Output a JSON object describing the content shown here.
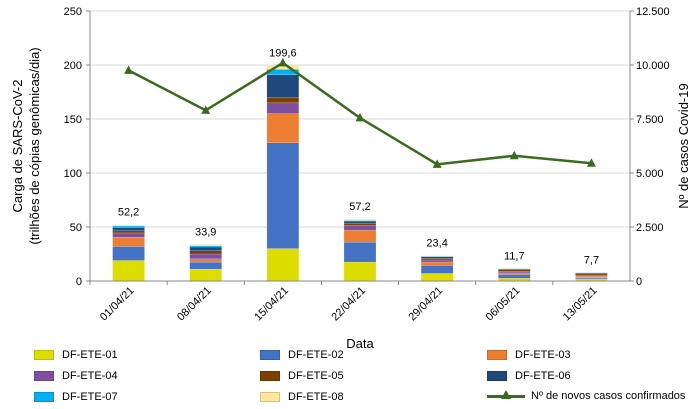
{
  "chart_data": {
    "type": "bar",
    "stacked": true,
    "categories": [
      "01/04/21",
      "08/04/21",
      "15/04/21",
      "22/04/21",
      "29/04/21",
      "06/05/21",
      "13/05/21"
    ],
    "totals_labels": [
      "52,2",
      "33,9",
      "199,6",
      "57,2",
      "23,4",
      "11,7",
      "7,7"
    ],
    "series": [
      {
        "name": "DF-ETE-01",
        "color": "#DDDD00",
        "values": [
          19,
          11,
          30,
          17.5,
          7,
          2.5,
          2
        ]
      },
      {
        "name": "DF-ETE-02",
        "color": "#4472C4",
        "values": [
          13,
          6.5,
          98,
          18.5,
          7.5,
          3.5,
          1
        ]
      },
      {
        "name": "DF-ETE-03",
        "color": "#ED7D31",
        "values": [
          8.5,
          3,
          27,
          11,
          3,
          1.5,
          1.5
        ]
      },
      {
        "name": "DF-ETE-04",
        "color": "#7F4F9F",
        "values": [
          4,
          4.5,
          10,
          4.5,
          2,
          1.5,
          1
        ]
      },
      {
        "name": "DF-ETE-05",
        "color": "#7B3F00",
        "values": [
          2,
          3,
          5,
          2,
          1.5,
          1.5,
          1.5
        ]
      },
      {
        "name": "DF-ETE-06",
        "color": "#1F497D",
        "values": [
          3,
          3.5,
          21,
          2,
          1.5,
          0.7,
          0.5
        ]
      },
      {
        "name": "DF-ETE-07",
        "color": "#00B0F0",
        "values": [
          1.5,
          1.2,
          5,
          0.5,
          0.5,
          0.3,
          0.2
        ]
      },
      {
        "name": "DF-ETE-08",
        "color": "#FFE699",
        "values": [
          1.2,
          1.2,
          3.6,
          1.2,
          0.4,
          0.2,
          0
        ]
      }
    ],
    "line_series": {
      "name": "Nº de novos casos confirmados",
      "color": "#3A6B1E",
      "axis": "right",
      "values": [
        9750,
        7900,
        10100,
        7550,
        5400,
        5800,
        5450
      ]
    },
    "xlabel": "Data",
    "ylabel_lines": [
      "Carga de SARS-CoV-2",
      "(trilhões de cópias genômicas/dia)"
    ],
    "y2label": "Nº de casos Covid-19",
    "ylim": [
      0,
      250
    ],
    "y_ticks": [
      0,
      50,
      100,
      150,
      200,
      250
    ],
    "y2lim": [
      0,
      12500
    ],
    "y2_ticks": [
      "0",
      "2.500",
      "5.000",
      "7.500",
      "10.000",
      "12.500"
    ],
    "legend_position": "bottom"
  }
}
